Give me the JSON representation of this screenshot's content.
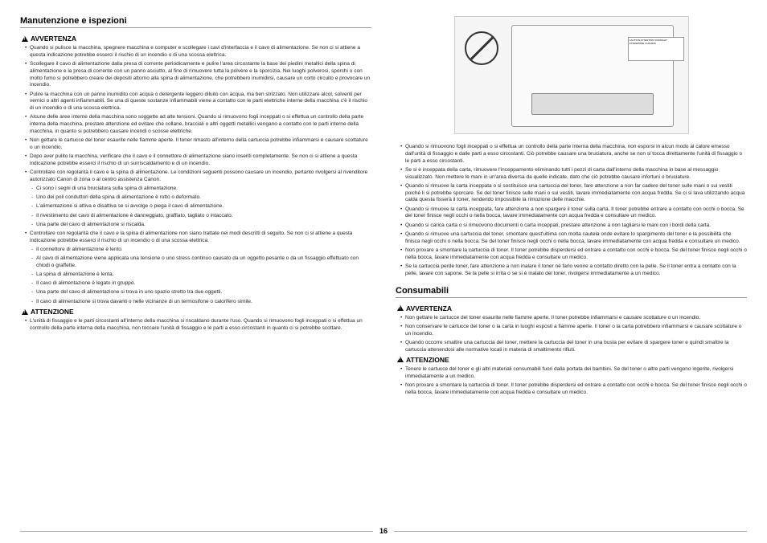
{
  "page_number": "16",
  "left": {
    "section_title": "Manutenzione e ispezioni",
    "avvertenza_label": "AVVERTENZA",
    "avvertenza": [
      "Quando si pulisce la macchina, spegnere macchina e computer e scollegare i cavi d'interfaccia e il cavo di alimentazione. Se non ci si attiene a questa indicazione potrebbe esserci il rischio di un incendio o di una scossa elettrica.",
      "Scollegare il cavo di alimentazione dalla presa di corrente periodicamente e pulire l'area circostante la base dei piedini metallici della spina di alimentazione e la presa di corrente con un panno asciutto, al fine di rimuovere tutta la polvere e la sporcizia. Nei luoghi polverosi, sporchi o con molto fumo si potrebbero creare dei depositi attorno alla spina di alimentazione, che potrebbero inumidirsi, causare un corto circuito e provocare un incendio.",
      "Pulire la macchina con un panno inumidito con acqua o detergente leggero diluito con acqua, ma ben strizzato. Non utilizzare alcol, solventi per vernici o altri agenti infiammabili. Se una di queste sostanze infiammabili viene a contatto con le parti elettriche interne della macchina c'è il rischio di un incendio o di una scossa elettrica.",
      "Alcune delle aree interne della macchina sono soggette ad alte tensioni. Quando si rimuovono fogli inceppati o si effettua un controllo della parte interna della macchina, prestare attenzione ed evitare che collane, bracciali o altri oggetti metallici vengano a contatto con le parti interne della macchina, in quanto si potrebbero causare incendi o scosse elettriche.",
      "Non gettare le cartucce del toner esaurite nelle fiamme aperte. Il toner rimasto all'interno della cartuccia potrebbe infiammarsi e causare scottature o un incendio.",
      "Dopo aver pulito la macchina, verificare che il cavo e il connettore di alimentazione siano inseriti completamente. Se non ci si attiene a questa indicazione potrebbe esserci il rischio di un surriscaldamento e di un incendio.",
      "Controllare con regolarità il cavo e la spina di alimentazione. Le condizioni seguenti possono causare un incendio, pertanto rivolgersi al rivenditore autorizzato Canon di zona o al centro assistenza Canon."
    ],
    "avvertenza_sub1": [
      "Ci sono i segni di una bruciatura sulla spina di alimentazione.",
      "Uno dei poli conduttori della spina di alimentazione è rotto o deformato.",
      "L'alimentazione si attiva e disattiva se si avvolge o piega il cavo di alimentazione.",
      "Il rivestimento del cavo di alimentazione è danneggiato, graffiato, tagliato o intaccato.",
      "Una parte del cavo di alimentazione si riscalda."
    ],
    "avvertenza_cont": [
      "Controllare con regolarità che il cavo e la spina di alimentazione non siano trattate nei modi descritti di seguito. Se non ci si attiene a questa indicazione potrebbe esserci il rischio di un incendio o di una scossa elettrica."
    ],
    "avvertenza_sub2": [
      "Il connettore di alimentazione è lento.",
      "Al cavo di alimentazione viene applicata una tensione o uno stress continuo causato da un oggetto pesante o da un fissaggio effettuato con chiodi o graffette.",
      "La spina di alimentazione è lenta.",
      "Il cavo di alimentazione è legato in gruppo.",
      "Una parte del cavo di alimentazione si trova in uno spazio stretto tra due oggetti.",
      "Il cavo di alimentazione si trova davanti o nelle vicinanze di un termosifone o calorifero simile."
    ],
    "attenzione_label": "ATTENZIONE",
    "attenzione": [
      "L'unità di fissaggio e le parti circostanti all'interno della macchina si riscaldano durante l'uso. Quando si rimuovono fogli inceppati o si effettua un controllo della parte interna della macchina, non toccare l'unità di fissaggio e le parti a esso circostanti in quanto ci si potrebbe scottare."
    ]
  },
  "right": {
    "caution_text": "CAUTION ATTENTION VORSICHT ATTENZIONE CUIDADO",
    "top_list": [
      "Quando si rimuovono fogli inceppati o si effettua un controllo della parte interna della macchina, non esporsi in alcun modo al calore emesso dall'unità di fissaggio e dalle parti a esso circostanti. Ciò potrebbe causare una bruciatura, anche se non si tocca direttamente l'unità di fissaggio o le parti a esso circostanti.",
      "Se si è inceppata della carta, rimuovere l'inceppamento eliminando tutti i pezzi di carta dall'interno della macchina in base al messaggio visualizzato. Non mettere le mani in un'area diversa da quelle indicate, dato che ciò potrebbe causare infortuni o bruciature.",
      "Quando si rimuove la carta inceppata o si sostituisce una cartuccia del toner, fare attenzione a non far cadere del toner sulle mani o sui vestiti poiché li si potrebbe sporcare. Se del toner finisce sulle mani o sui vestiti, lavare immediatamente con acqua fredda. Se ci si lava utilizzando acqua calda questa fisserà il toner, rendendo impossibile la rimozione delle macchie.",
      "Quando si rimuove la carta inceppata, fare attenzione a non spargere il toner sulla carta. Il toner potrebbe entrare a contatto con occhi o bocca. Se del toner finisce negli occhi o nella bocca, lavare immediatamente con acqua fredda e consultare un medico.",
      "Quando si carica carta o si rimuovono documenti o carta inceppati, prestare attenzione a non tagliarsi le mani con i bordi della carta.",
      "Quando si rimuove una cartuccia del toner, smontare quest'ultima con molta cautela onde evitare lo spargimento del toner e la possibilità che finisca negli occhi o nella bocca. Se del toner finisce negli occhi o nella bocca, lavare immediatamente con acqua fredda e consultare un medico.",
      "Non provare a smontare la cartuccia di toner. Il toner potrebbe disperdersi ed entrare a contatto con occhi e bocca. Se del toner finisce negli occhi o nella bocca, lavare immediatamente con acqua fredda e consultare un medico.",
      "Se la cartuccia perde toner, fare attenzione a non inalare il toner né farlo venire a contatto diretto con la pelle. Se il toner entra a contatto con la pelle, lavare con sapone. Se la pelle si irrita o se si è inalato del toner, rivolgersi immediatamente a un medico."
    ],
    "section_title": "Consumabili",
    "avvertenza_label": "AVVERTENZA",
    "avvertenza": [
      "Non gettare le cartucce del toner esaurite nelle fiamme aperte. Il toner potrebbe infiammarsi e causare scottature o un incendio.",
      "Non conservare le cartucce del toner o la carta in luoghi esposti a fiamme aperte. Il toner o la carta potrebbero infiammarsi e causare scottature o un incendio.",
      "Quando occorre smaltire una cartuccia del toner, mettere la cartuccia del toner in una busta per evitare di spargere toner e quindi smaltire la cartuccia attenendosi alle normative locali in materia di smaltimento rifiuti."
    ],
    "attenzione_label": "ATTENZIONE",
    "attenzione": [
      "Tenere le cartucce del toner e gli altri materiali consumabili fuori dalla portata dei bambini. Se del toner o altre parti vengono ingerite, rivolgersi immediatamente a un medico.",
      "Non provare a smontare la cartuccia di toner. Il toner potrebbe disperdersi ed entrare a contatto con occhi e bocca. Se del toner finisce negli occhi o nella bocca, lavare immediatamente con acqua fredda e consultare un medico."
    ]
  }
}
